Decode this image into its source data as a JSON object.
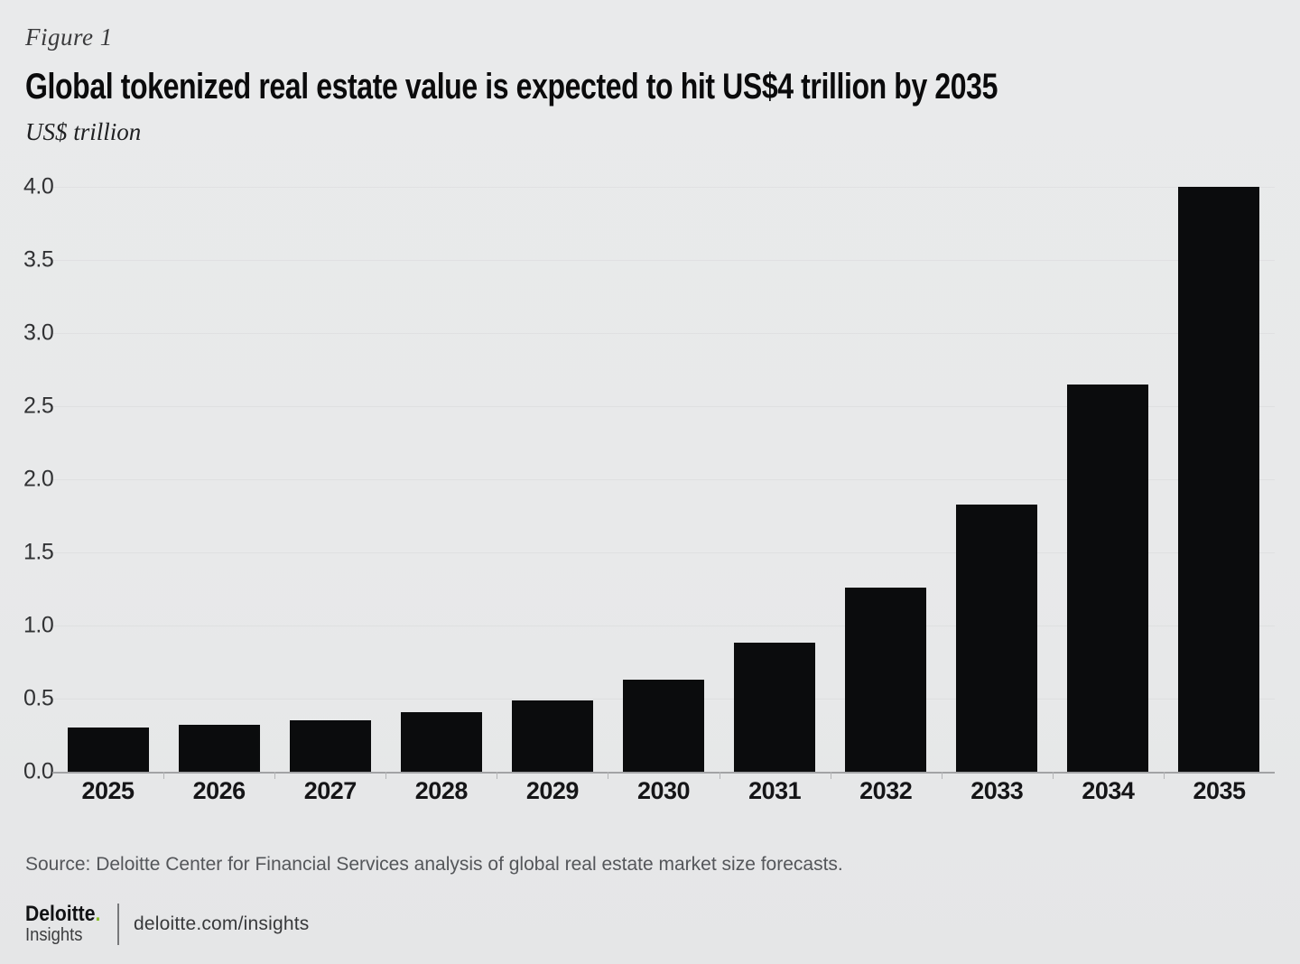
{
  "figure_label": "Figure 1",
  "title": "Global tokenized real estate value is expected to hit US$4 trillion by 2035",
  "units_label": "US$ trillion",
  "source": "Source: Deloitte Center for Financial Services analysis of global real estate market size forecasts.",
  "footer": {
    "brand": "Deloitte",
    "brand_dot": ".",
    "brand_sub": "Insights",
    "link": "deloitte.com/insights"
  },
  "colors": {
    "background": "#e8e9ea",
    "bar": "#0b0c0d",
    "axis_line": "#a2a3a5",
    "brand_green": "#86bc25"
  },
  "chart_data": {
    "type": "bar",
    "title": "Global tokenized real estate value is expected to hit US$4 trillion by 2035",
    "xlabel": "",
    "ylabel": "US$ trillion",
    "categories": [
      "2025",
      "2026",
      "2027",
      "2028",
      "2029",
      "2030",
      "2031",
      "2032",
      "2033",
      "2034",
      "2035"
    ],
    "values": [
      0.3,
      0.32,
      0.35,
      0.41,
      0.49,
      0.63,
      0.88,
      1.26,
      1.83,
      2.65,
      4.0
    ],
    "ylim": [
      0,
      4.0
    ],
    "yticks": [
      0.0,
      0.5,
      1.0,
      1.5,
      2.0,
      2.5,
      3.0,
      3.5,
      4.0
    ],
    "grid": "faint-horizontal",
    "legend_position": "none",
    "bar_color": "#0b0c0d"
  }
}
